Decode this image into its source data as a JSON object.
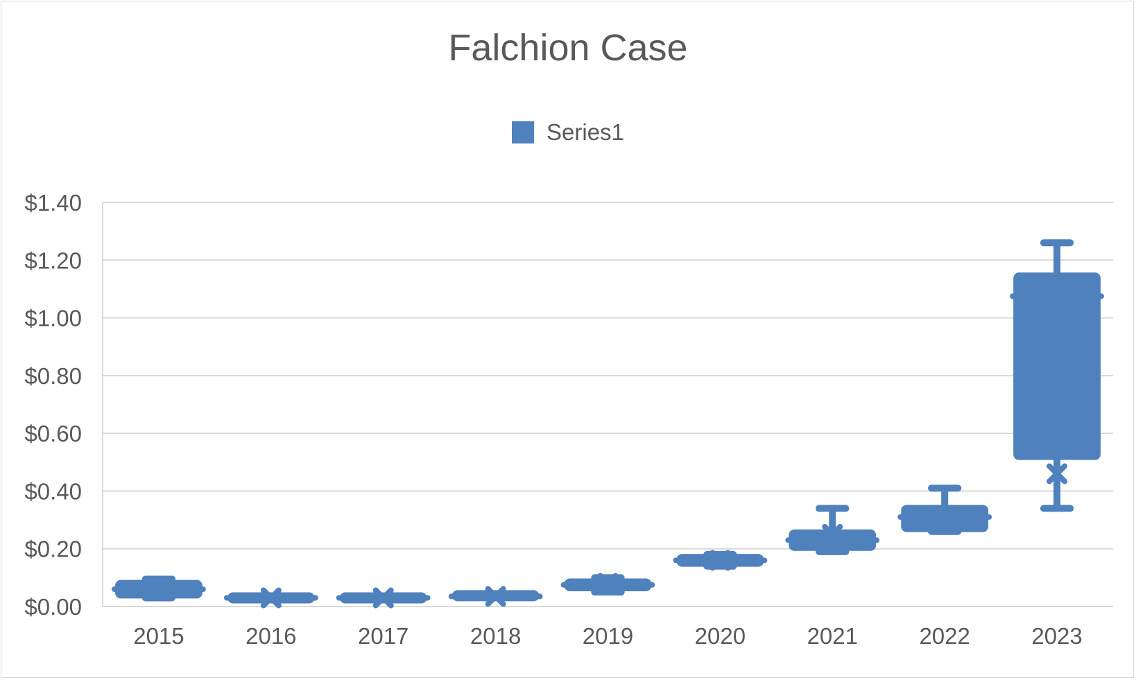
{
  "chart_data": {
    "type": "box",
    "title": "Falchion Case",
    "legend": {
      "entries": [
        "Series1"
      ],
      "position": "top"
    },
    "xlabel": "",
    "ylabel": "",
    "ylim": [
      0,
      1.4
    ],
    "yticks": [
      "$0.00",
      "$0.20",
      "$0.40",
      "$0.60",
      "$0.80",
      "$1.00",
      "$1.20",
      "$1.40"
    ],
    "ytick_values": [
      0,
      0.2,
      0.4,
      0.6,
      0.8,
      1.0,
      1.2,
      1.4
    ],
    "grid": true,
    "categories": [
      "2015",
      "2016",
      "2017",
      "2018",
      "2019",
      "2020",
      "2021",
      "2022",
      "2023"
    ],
    "series": [
      {
        "name": "Series1",
        "color": "#4f81bd",
        "boxes": [
          {
            "min": 0.03,
            "q1": 0.035,
            "median": 0.06,
            "q3": 0.085,
            "max": 0.095,
            "mean": 0.06
          },
          {
            "min": 0.03,
            "q1": 0.03,
            "median": 0.03,
            "q3": 0.03,
            "max": 0.03,
            "mean": 0.03
          },
          {
            "min": 0.03,
            "q1": 0.03,
            "median": 0.03,
            "q3": 0.03,
            "max": 0.03,
            "mean": 0.03
          },
          {
            "min": 0.035,
            "q1": 0.035,
            "median": 0.035,
            "q3": 0.04,
            "max": 0.04,
            "mean": 0.035
          },
          {
            "min": 0.05,
            "q1": 0.06,
            "median": 0.075,
            "q3": 0.09,
            "max": 0.1,
            "mean": 0.08
          },
          {
            "min": 0.14,
            "q1": 0.145,
            "median": 0.16,
            "q3": 0.175,
            "max": 0.18,
            "mean": 0.16
          },
          {
            "min": 0.19,
            "q1": 0.2,
            "median": 0.23,
            "q3": 0.26,
            "max": 0.34,
            "mean": 0.25
          },
          {
            "min": 0.26,
            "q1": 0.265,
            "median": 0.31,
            "q3": 0.345,
            "max": 0.41,
            "mean": 0.31
          },
          {
            "min": 0.34,
            "q1": 0.515,
            "median": 1.075,
            "q3": 1.15,
            "max": 1.26,
            "mean": 0.46
          }
        ]
      }
    ]
  }
}
